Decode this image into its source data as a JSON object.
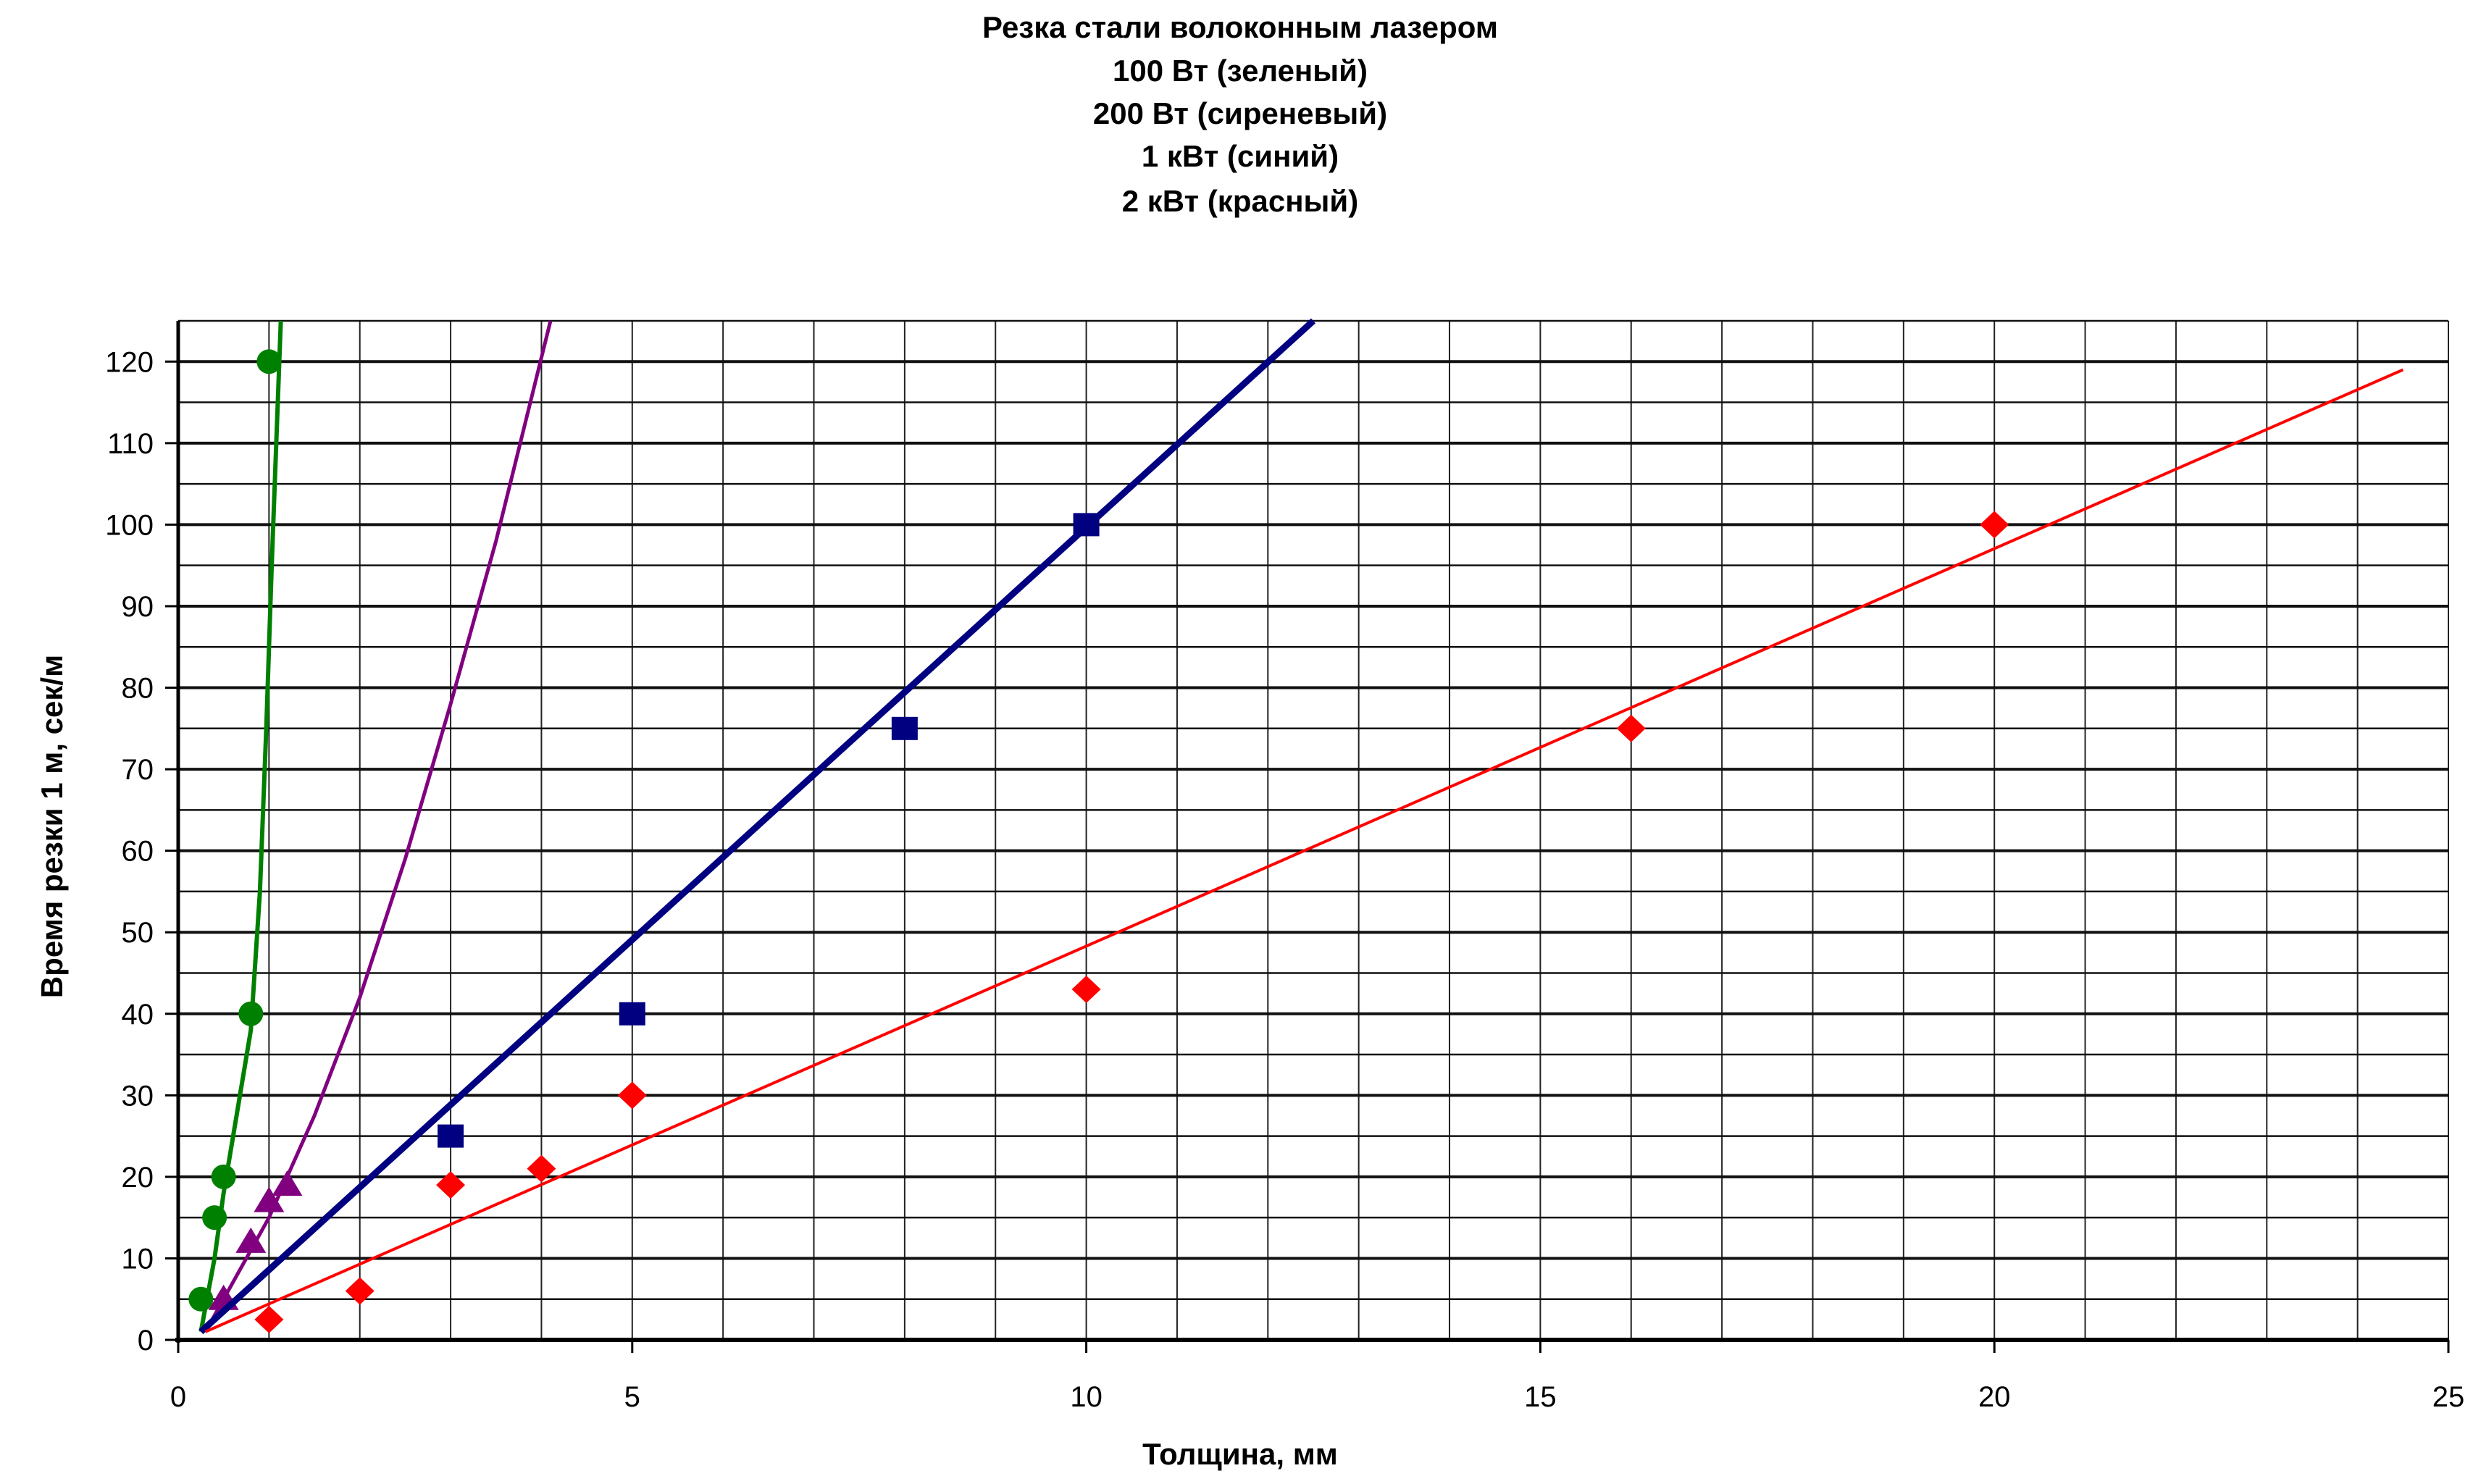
{
  "chart_data": {
    "type": "scatter",
    "title": [
      "Резка стали волоконным лазером",
      "100 Вт (зеленый)",
      "200 Вт (сиреневый)",
      "1 кВт (синий)",
      "2 кВт (красный)"
    ],
    "xlabel": "Толщина, мм",
    "ylabel": "Время резки 1 м, сек/м",
    "xlim": [
      0,
      25
    ],
    "ylim": [
      0,
      125
    ],
    "xticks": [
      0,
      5,
      10,
      15,
      20,
      25
    ],
    "yticks": [
      0,
      10,
      20,
      30,
      40,
      50,
      60,
      70,
      80,
      90,
      100,
      110,
      120
    ],
    "grid": true,
    "series": [
      {
        "name": "100 Вт",
        "color": "#008000",
        "marker": "circle",
        "points": [
          [
            0.25,
            5
          ],
          [
            0.4,
            15
          ],
          [
            0.5,
            20
          ],
          [
            0.8,
            40
          ],
          [
            1,
            120
          ]
        ],
        "trend": [
          [
            0.25,
            1
          ],
          [
            0.4,
            10
          ],
          [
            0.5,
            18
          ],
          [
            0.65,
            28
          ],
          [
            0.8,
            38
          ],
          [
            0.9,
            55
          ],
          [
            0.97,
            75
          ],
          [
            1.03,
            95
          ],
          [
            1.08,
            110
          ],
          [
            1.13,
            125
          ]
        ]
      },
      {
        "name": "200 Вт",
        "color": "#800080",
        "marker": "triangle",
        "points": [
          [
            0.5,
            5
          ],
          [
            0.8,
            12
          ],
          [
            1,
            17
          ],
          [
            1.2,
            19
          ]
        ],
        "trend": [
          [
            0.3,
            1
          ],
          [
            0.5,
            5
          ],
          [
            1,
            15
          ],
          [
            1.5,
            27.5
          ],
          [
            2,
            42
          ],
          [
            2.5,
            59
          ],
          [
            3,
            78
          ],
          [
            3.5,
            98
          ],
          [
            4.1,
            125
          ]
        ]
      },
      {
        "name": "1 кВт",
        "color": "#000080",
        "marker": "square",
        "points": [
          [
            3,
            25
          ],
          [
            5,
            40
          ],
          [
            8,
            75
          ],
          [
            10,
            100
          ]
        ],
        "trend": [
          [
            0.25,
            1
          ],
          [
            12.5,
            125
          ]
        ]
      },
      {
        "name": "2 кВт",
        "color": "#ff0000",
        "marker": "diamond",
        "points": [
          [
            1,
            2.5
          ],
          [
            2,
            6
          ],
          [
            3,
            19
          ],
          [
            4,
            21
          ],
          [
            5,
            30
          ],
          [
            10,
            43
          ],
          [
            16,
            75
          ],
          [
            20,
            100
          ]
        ],
        "trend": [
          [
            0.3,
            1
          ],
          [
            24.5,
            119
          ]
        ]
      }
    ]
  }
}
